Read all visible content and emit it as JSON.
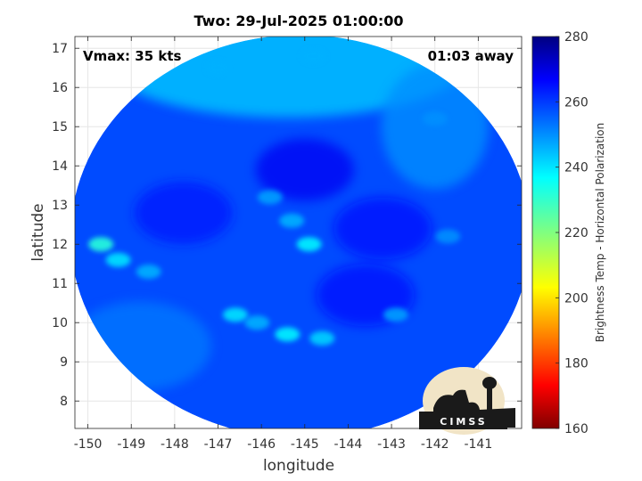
{
  "chart_data": {
    "type": "heatmap",
    "title": "Two: 29-Jul-2025 01:00:00",
    "xlabel": "longitude",
    "ylabel": "latitude",
    "xlim": [
      -150.3,
      -140.0
    ],
    "ylim": [
      7.3,
      17.3
    ],
    "x_ticks": [
      "-150",
      "-149",
      "-148",
      "-147",
      "-146",
      "-145",
      "-144",
      "-143",
      "-142",
      "-141"
    ],
    "x_tick_values": [
      -150,
      -149,
      -148,
      -147,
      -146,
      -145,
      -144,
      -143,
      -142,
      -141
    ],
    "y_ticks": [
      "8",
      "9",
      "10",
      "11",
      "12",
      "13",
      "14",
      "15",
      "16",
      "17"
    ],
    "y_tick_values": [
      8,
      9,
      10,
      11,
      12,
      13,
      14,
      15,
      16,
      17
    ],
    "grid": true,
    "colorbar": {
      "label": "Brightness Temp - Horizontal Polarization",
      "min": 160,
      "max": 280,
      "ticks": [
        "160",
        "180",
        "200",
        "220",
        "240",
        "260",
        "280"
      ],
      "tick_values": [
        160,
        180,
        200,
        220,
        240,
        260,
        280
      ],
      "colormap": "jet"
    },
    "swath_center": {
      "lon": -145.1,
      "lat": 12.2
    },
    "swath_radius_deg": 5.3,
    "background_value": 258,
    "features": [
      {
        "lon": -145.8,
        "lat": 13.2,
        "value": 248
      },
      {
        "lon": -145.3,
        "lat": 12.6,
        "value": 246
      },
      {
        "lon": -144.9,
        "lat": 12.0,
        "value": 238
      },
      {
        "lon": -149.7,
        "lat": 12.0,
        "value": 232
      },
      {
        "lon": -149.3,
        "lat": 11.6,
        "value": 240
      },
      {
        "lon": -148.6,
        "lat": 11.3,
        "value": 246
      },
      {
        "lon": -146.6,
        "lat": 10.2,
        "value": 240
      },
      {
        "lon": -146.1,
        "lat": 10.0,
        "value": 246
      },
      {
        "lon": -145.4,
        "lat": 9.7,
        "value": 238
      },
      {
        "lon": -144.6,
        "lat": 9.6,
        "value": 242
      },
      {
        "lon": -142.9,
        "lat": 10.2,
        "value": 248
      },
      {
        "lon": -141.7,
        "lat": 12.2,
        "value": 250
      },
      {
        "lon": -147.0,
        "lat": 16.5,
        "value": 246
      },
      {
        "lon": -144.8,
        "lat": 16.8,
        "value": 246
      },
      {
        "lon": -142.0,
        "lat": 15.2,
        "value": 250
      }
    ],
    "cold_regions": [
      {
        "lon": -145.0,
        "lat": 13.9,
        "value": 268
      },
      {
        "lon": -143.2,
        "lat": 12.4,
        "value": 266
      },
      {
        "lon": -147.8,
        "lat": 12.8,
        "value": 264
      },
      {
        "lon": -143.6,
        "lat": 10.7,
        "value": 266
      }
    ]
  },
  "annotations": {
    "vmax": "Vmax: 35 kts",
    "time_away": "01:03 away"
  },
  "logo": {
    "name": "cimss-logo",
    "text": "CIMSS"
  }
}
